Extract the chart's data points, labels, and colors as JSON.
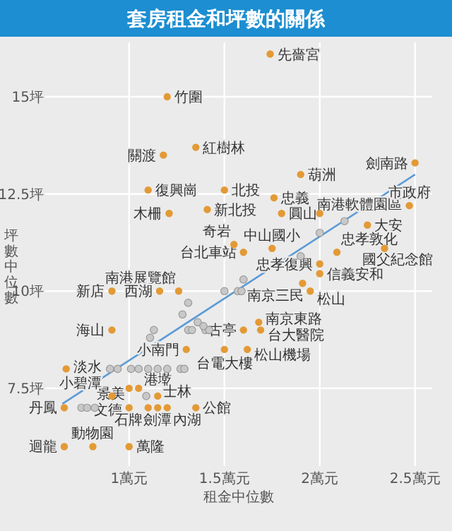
{
  "chart_data": {
    "type": "scatter",
    "title": "套房租金和坪數的關係",
    "xlabel": "租金中位數",
    "ylabel": "坪數中位數",
    "xlim": [
      0.56,
      2.59
    ],
    "ylim": [
      5.5,
      16.4
    ],
    "xticks": [
      {
        "value": 1,
        "label": "1萬元"
      },
      {
        "value": 1.5,
        "label": "1.5萬元"
      },
      {
        "value": 2,
        "label": "2萬元"
      },
      {
        "value": 2.5,
        "label": "2.5萬元"
      }
    ],
    "yticks": [
      {
        "value": 7.5,
        "label": "7.5坪"
      },
      {
        "value": 10,
        "label": "10坪"
      },
      {
        "value": 12.5,
        "label": "12.5坪"
      },
      {
        "value": 15,
        "label": "15坪"
      }
    ],
    "grid": true,
    "marker": "circle",
    "series": [
      {
        "type": "line",
        "marker": "none",
        "color": "#5b9bd5",
        "x": [
          0.65,
          2.5
        ],
        "values": [
          7.1,
          13.0
        ]
      },
      {
        "color": "#c8c8c8",
        "x": [
          0.9,
          0.94,
          1.01,
          1.05,
          1.1,
          1.15,
          1.2,
          1.27,
          1.29,
          0.75,
          0.78,
          0.82,
          1.09,
          1.11,
          1.13,
          1.28,
          1.31,
          1.33,
          1.31,
          1.36,
          1.4,
          1.42,
          1.39,
          1.5,
          1.57,
          1.59,
          1.6,
          1.9,
          2.0,
          2.13
        ],
        "values": [
          8.0,
          8.0,
          8.0,
          8.0,
          8.0,
          8.0,
          8.0,
          8.0,
          8.0,
          7.0,
          7.0,
          7.0,
          7.3,
          8.8,
          9.0,
          9.4,
          9.0,
          9.0,
          9.7,
          9.2,
          9.0,
          9.0,
          9.1,
          10.0,
          10.0,
          10.0,
          10.3,
          10.9,
          11.5,
          11.8
        ]
      },
      {
        "color": "#e39a35",
        "x": [
          1.74,
          2.5,
          1.9,
          1.5,
          1.76,
          2.0,
          2.47,
          1.41,
          1.8,
          2.25,
          1.55,
          1.75,
          2.09,
          1.6,
          2.34,
          1.2,
          1.35,
          1.18,
          1.1,
          1.21,
          2.0,
          2.0,
          1.91,
          1.95,
          1.6,
          1.69,
          1.68,
          1.5,
          1.62,
          1.26,
          1.16,
          0.91,
          0.91,
          1.3,
          0.67,
          1.0,
          1.05,
          0.91,
          1.15,
          0.66,
          1.0,
          1.1,
          1.15,
          1.2,
          1.35,
          0.66,
          0.81,
          1.0
        ],
        "values": [
          16.1,
          13.3,
          13.0,
          12.6,
          12.4,
          12.0,
          12.2,
          12.1,
          12.0,
          11.7,
          11.2,
          11.1,
          11.0,
          11.0,
          11.1,
          15.0,
          13.7,
          13.5,
          12.6,
          12.0,
          10.7,
          10.45,
          10.2,
          10.0,
          9.0,
          9.0,
          9.2,
          8.5,
          8.5,
          10.0,
          10.0,
          10.0,
          9.0,
          8.5,
          8.0,
          7.5,
          7.5,
          7.3,
          7.3,
          7.0,
          7.0,
          7.0,
          7.0,
          7.0,
          7.0,
          6.0,
          6.0,
          6.0
        ]
      }
    ],
    "annotations": [
      {
        "text": "先嗇宮",
        "x": 1.74,
        "y": 16.1
      },
      {
        "text": "劍南路",
        "x": 2.5,
        "y": 13.3
      },
      {
        "text": "葫洲",
        "x": 1.9,
        "y": 13.0
      },
      {
        "text": "北投",
        "x": 1.5,
        "y": 12.6
      },
      {
        "text": "忠義",
        "x": 1.76,
        "y": 12.4
      },
      {
        "text": "南港軟體園區",
        "x": 2.0,
        "y": 12.0
      },
      {
        "text": "市政府",
        "x": 2.47,
        "y": 12.2
      },
      {
        "text": "新北投",
        "x": 1.41,
        "y": 12.1
      },
      {
        "text": "圓山",
        "x": 1.8,
        "y": 12.0
      },
      {
        "text": "大安",
        "x": 2.25,
        "y": 11.7
      },
      {
        "text": "奇岩",
        "x": 1.55,
        "y": 11.2
      },
      {
        "text": "中山國小",
        "x": 1.75,
        "y": 11.1
      },
      {
        "text": "忠孝敦化",
        "x": 2.09,
        "y": 11.0
      },
      {
        "text": "台北車站",
        "x": 1.6,
        "y": 11.0
      },
      {
        "text": "國父紀念館",
        "x": 2.34,
        "y": 11.1
      },
      {
        "text": "竹圍",
        "x": 1.2,
        "y": 15.0
      },
      {
        "text": "紅樹林",
        "x": 1.35,
        "y": 13.7
      },
      {
        "text": "關渡",
        "x": 1.18,
        "y": 13.5
      },
      {
        "text": "復興崗",
        "x": 1.1,
        "y": 12.6
      },
      {
        "text": "木柵",
        "x": 1.21,
        "y": 12.0
      },
      {
        "text": "忠孝復興",
        "x": 2.0,
        "y": 10.7
      },
      {
        "text": "信義安和",
        "x": 2.0,
        "y": 10.45
      },
      {
        "text": "南京三民",
        "x": 1.91,
        "y": 10.2
      },
      {
        "text": "松山",
        "x": 1.95,
        "y": 10.0
      },
      {
        "text": "古亭",
        "x": 1.6,
        "y": 9.0
      },
      {
        "text": "台大醫院",
        "x": 1.69,
        "y": 9.0
      },
      {
        "text": "南京東路",
        "x": 1.68,
        "y": 9.2
      },
      {
        "text": "台電大樓",
        "x": 1.5,
        "y": 8.5
      },
      {
        "text": "松山機場",
        "x": 1.62,
        "y": 8.5
      },
      {
        "text": "南港展覽館",
        "x": 1.26,
        "y": 10.0
      },
      {
        "text": "西湖",
        "x": 1.16,
        "y": 10.0
      },
      {
        "text": "新店",
        "x": 0.91,
        "y": 10.0
      },
      {
        "text": "海山",
        "x": 0.91,
        "y": 9.0
      },
      {
        "text": "小南門",
        "x": 1.3,
        "y": 8.5
      },
      {
        "text": "淡水",
        "x": 0.67,
        "y": 8.0
      },
      {
        "text": "景美",
        "x": 1.0,
        "y": 7.5
      },
      {
        "text": "港墘",
        "x": 1.05,
        "y": 7.5
      },
      {
        "text": "小碧潭",
        "x": 0.91,
        "y": 7.3
      },
      {
        "text": "士林",
        "x": 1.15,
        "y": 7.3
      },
      {
        "text": "丹鳳",
        "x": 0.66,
        "y": 7.0
      },
      {
        "text": "文德",
        "x": 1.0,
        "y": 7.0
      },
      {
        "text": "石牌",
        "x": 1.1,
        "y": 7.0
      },
      {
        "text": "劍潭",
        "x": 1.15,
        "y": 7.0
      },
      {
        "text": "內湖",
        "x": 1.2,
        "y": 7.0
      },
      {
        "text": "公館",
        "x": 1.35,
        "y": 7.0
      },
      {
        "text": "迴龍",
        "x": 0.66,
        "y": 6.0
      },
      {
        "text": "動物園",
        "x": 0.81,
        "y": 6.0
      },
      {
        "text": "萬隆",
        "x": 1.0,
        "y": 6.0
      }
    ]
  }
}
